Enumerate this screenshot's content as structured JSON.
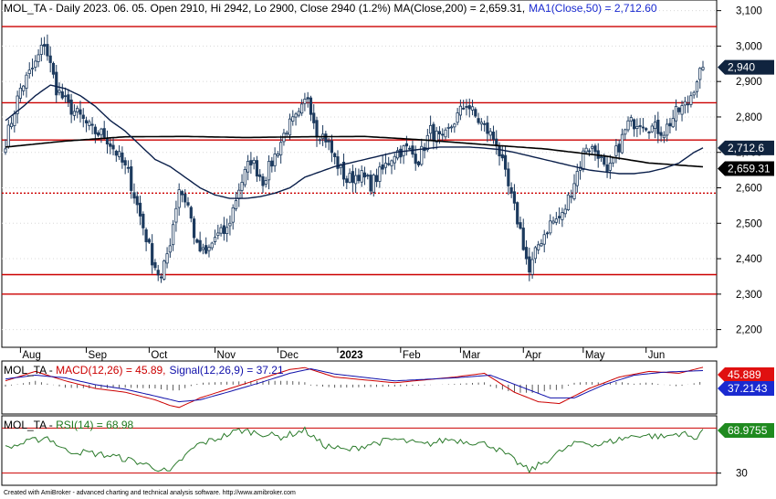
{
  "header": {
    "price_title_prefix": "MOL_TA - Daily 2023. 06. 05. Open 2910, Hi 2942, Lo 2900, Close 2940 (1.2%) ",
    "ma200_label": "MA(Close,200) = 2,659.31,",
    "ma50_label": "MA1(Close,50) = 2,712.60",
    "macd_prefix": "MOL_TA - ",
    "macd_label": "MACD(12,26) = 45.89,",
    "signal_label": "Signal(12,26,9) = 37.21",
    "rsi_prefix": "MOL_TA - ",
    "rsi_label": "RSI(14) = 68.98"
  },
  "footer": "Created with AmiBroker - advanced charting and technical analysis software. http://www.amibroker.com",
  "colors": {
    "candle": "#1c3a5e",
    "ma200": "#000000",
    "ma50": "#0a1f4a",
    "hline": "#cc0000",
    "macd": "#cc0000",
    "signal": "#1010aa",
    "rsi": "#2a7a2a",
    "badge_price": "#10243f",
    "badge_ma50": "#10243f",
    "badge_ma200": "#000000",
    "badge_macd": "#e01010",
    "badge_signal": "#1a2ad0",
    "badge_rsi": "#1f8a1f"
  },
  "badges": {
    "price": "2,940",
    "ma50": "2,712.6",
    "ma200": "2,659.31",
    "macd": "45.889",
    "signal": "37.2143",
    "rsi": "68.9755"
  },
  "chart_data": {
    "type": "candlestick",
    "y_ticks": [
      "3,100",
      "3,000",
      "2,900",
      "2,800",
      "2,700",
      "2,600",
      "2,500",
      "2,400",
      "2,300",
      "2,200"
    ],
    "ylim": [
      2150,
      3130
    ],
    "x_labels": [
      "Aug",
      "Sep",
      "Oct",
      "Nov",
      "Dec",
      "2023",
      "Feb",
      "Mar",
      "Apr",
      "May",
      "Jun"
    ],
    "horizontal_levels": [
      {
        "value": 3055,
        "style": "solid"
      },
      {
        "value": 2840,
        "style": "solid"
      },
      {
        "value": 2735,
        "style": "solid"
      },
      {
        "value": 2585,
        "style": "dotted"
      },
      {
        "value": 2355,
        "style": "solid"
      },
      {
        "value": 2300,
        "style": "solid"
      }
    ],
    "close_anchors": [
      [
        0,
        2730
      ],
      [
        5,
        2880
      ],
      [
        10,
        2950
      ],
      [
        13,
        3010
      ],
      [
        17,
        2880
      ],
      [
        21,
        2830
      ],
      [
        25,
        2800
      ],
      [
        29,
        2760
      ],
      [
        33,
        2750
      ],
      [
        37,
        2700
      ],
      [
        41,
        2640
      ],
      [
        45,
        2520
      ],
      [
        49,
        2400
      ],
      [
        52,
        2340
      ],
      [
        55,
        2450
      ],
      [
        58,
        2600
      ],
      [
        61,
        2550
      ],
      [
        64,
        2430
      ],
      [
        67,
        2410
      ],
      [
        70,
        2460
      ],
      [
        74,
        2480
      ],
      [
        78,
        2600
      ],
      [
        82,
        2680
      ],
      [
        86,
        2620
      ],
      [
        90,
        2690
      ],
      [
        94,
        2770
      ],
      [
        98,
        2800
      ],
      [
        101,
        2860
      ],
      [
        104,
        2760
      ],
      [
        107,
        2740
      ],
      [
        110,
        2680
      ],
      [
        114,
        2620
      ],
      [
        118,
        2640
      ],
      [
        122,
        2610
      ],
      [
        126,
        2650
      ],
      [
        130,
        2700
      ],
      [
        134,
        2710
      ],
      [
        138,
        2680
      ],
      [
        142,
        2760
      ],
      [
        146,
        2730
      ],
      [
        150,
        2790
      ],
      [
        154,
        2840
      ],
      [
        157,
        2800
      ],
      [
        160,
        2770
      ],
      [
        164,
        2730
      ],
      [
        168,
        2600
      ],
      [
        172,
        2480
      ],
      [
        175,
        2360
      ],
      [
        178,
        2440
      ],
      [
        182,
        2500
      ],
      [
        186,
        2520
      ],
      [
        190,
        2620
      ],
      [
        194,
        2720
      ],
      [
        198,
        2700
      ],
      [
        201,
        2630
      ],
      [
        204,
        2700
      ],
      [
        208,
        2780
      ],
      [
        212,
        2790
      ],
      [
        216,
        2770
      ],
      [
        220,
        2760
      ],
      [
        224,
        2810
      ],
      [
        228,
        2840
      ],
      [
        231,
        2910
      ],
      [
        233,
        2940
      ]
    ],
    "ma50_anchors": [
      [
        0,
        2790
      ],
      [
        6,
        2830
      ],
      [
        10,
        2860
      ],
      [
        15,
        2890
      ],
      [
        20,
        2880
      ],
      [
        25,
        2860
      ],
      [
        30,
        2830
      ],
      [
        35,
        2790
      ],
      [
        40,
        2760
      ],
      [
        45,
        2720
      ],
      [
        50,
        2680
      ],
      [
        55,
        2660
      ],
      [
        60,
        2630
      ],
      [
        65,
        2600
      ],
      [
        70,
        2580
      ],
      [
        75,
        2570
      ],
      [
        80,
        2570
      ],
      [
        85,
        2575
      ],
      [
        90,
        2585
      ],
      [
        95,
        2600
      ],
      [
        100,
        2630
      ],
      [
        105,
        2645
      ],
      [
        110,
        2660
      ],
      [
        115,
        2670
      ],
      [
        120,
        2680
      ],
      [
        125,
        2690
      ],
      [
        130,
        2700
      ],
      [
        135,
        2705
      ],
      [
        140,
        2710
      ],
      [
        145,
        2715
      ],
      [
        150,
        2715
      ],
      [
        155,
        2715
      ],
      [
        160,
        2712
      ],
      [
        165,
        2708
      ],
      [
        170,
        2700
      ],
      [
        175,
        2690
      ],
      [
        180,
        2680
      ],
      [
        185,
        2670
      ],
      [
        190,
        2660
      ],
      [
        195,
        2650
      ],
      [
        200,
        2645
      ],
      [
        205,
        2640
      ],
      [
        210,
        2640
      ],
      [
        215,
        2645
      ],
      [
        220,
        2655
      ],
      [
        225,
        2670
      ],
      [
        230,
        2700
      ],
      [
        233,
        2712.6
      ]
    ],
    "ma200_anchors": [
      [
        0,
        2715
      ],
      [
        20,
        2732
      ],
      [
        40,
        2744
      ],
      [
        60,
        2745
      ],
      [
        80,
        2742
      ],
      [
        100,
        2744
      ],
      [
        120,
        2745
      ],
      [
        140,
        2735
      ],
      [
        160,
        2722
      ],
      [
        180,
        2710
      ],
      [
        200,
        2690
      ],
      [
        215,
        2670
      ],
      [
        233,
        2659.31
      ]
    ],
    "macd": {
      "ylim": [
        -75,
        60
      ],
      "macd_anchors": [
        [
          0,
          10
        ],
        [
          10,
          35
        ],
        [
          20,
          10
        ],
        [
          30,
          -10
        ],
        [
          40,
          -20
        ],
        [
          50,
          -40
        ],
        [
          55,
          -55
        ],
        [
          58,
          -60
        ],
        [
          65,
          -35
        ],
        [
          75,
          -10
        ],
        [
          85,
          15
        ],
        [
          95,
          40
        ],
        [
          100,
          45
        ],
        [
          110,
          20
        ],
        [
          130,
          5
        ],
        [
          150,
          20
        ],
        [
          160,
          30
        ],
        [
          170,
          -20
        ],
        [
          178,
          -45
        ],
        [
          185,
          -50
        ],
        [
          195,
          -10
        ],
        [
          205,
          20
        ],
        [
          215,
          35
        ],
        [
          225,
          30
        ],
        [
          233,
          45.89
        ]
      ],
      "signal_anchors": [
        [
          0,
          15
        ],
        [
          10,
          25
        ],
        [
          20,
          18
        ],
        [
          30,
          0
        ],
        [
          40,
          -12
        ],
        [
          50,
          -30
        ],
        [
          58,
          -45
        ],
        [
          65,
          -40
        ],
        [
          75,
          -18
        ],
        [
          85,
          5
        ],
        [
          95,
          30
        ],
        [
          102,
          42
        ],
        [
          110,
          28
        ],
        [
          130,
          10
        ],
        [
          150,
          18
        ],
        [
          162,
          25
        ],
        [
          172,
          -5
        ],
        [
          182,
          -35
        ],
        [
          190,
          -35
        ],
        [
          200,
          0
        ],
        [
          210,
          25
        ],
        [
          220,
          33
        ],
        [
          233,
          37.21
        ]
      ]
    },
    "rsi": {
      "ylim": [
        20,
        80
      ],
      "y_ticks": [
        "30"
      ],
      "levels": [
        70,
        30
      ],
      "anchors": [
        [
          0,
          52
        ],
        [
          8,
          58
        ],
        [
          14,
          62
        ],
        [
          20,
          50
        ],
        [
          28,
          48
        ],
        [
          36,
          45
        ],
        [
          44,
          40
        ],
        [
          50,
          35
        ],
        [
          55,
          30
        ],
        [
          58,
          40
        ],
        [
          64,
          55
        ],
        [
          70,
          60
        ],
        [
          78,
          68
        ],
        [
          84,
          66
        ],
        [
          92,
          62
        ],
        [
          100,
          68
        ],
        [
          106,
          55
        ],
        [
          114,
          50
        ],
        [
          122,
          56
        ],
        [
          130,
          60
        ],
        [
          140,
          55
        ],
        [
          148,
          60
        ],
        [
          155,
          58
        ],
        [
          162,
          55
        ],
        [
          168,
          45
        ],
        [
          175,
          32
        ],
        [
          180,
          40
        ],
        [
          186,
          50
        ],
        [
          192,
          58
        ],
        [
          198,
          55
        ],
        [
          205,
          60
        ],
        [
          212,
          64
        ],
        [
          220,
          62
        ],
        [
          226,
          66
        ],
        [
          230,
          60
        ],
        [
          233,
          68.98
        ]
      ]
    }
  }
}
